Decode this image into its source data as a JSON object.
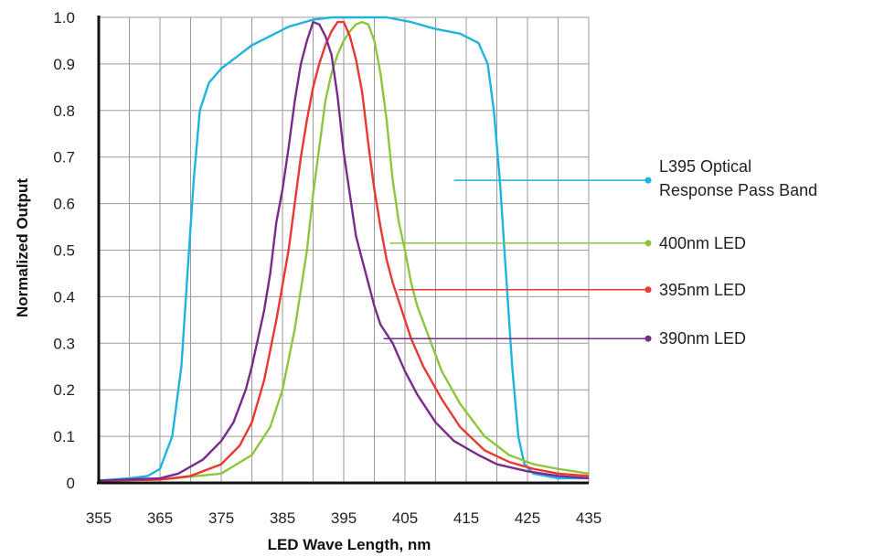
{
  "chart_data": {
    "type": "line",
    "title": "",
    "xlabel": "LED Wave Length, nm",
    "ylabel": "Normalized Output",
    "xlim": [
      355,
      435
    ],
    "ylim": [
      0,
      1.0
    ],
    "x_ticks": [
      355,
      360,
      365,
      370,
      375,
      380,
      385,
      390,
      395,
      400,
      405,
      410,
      415,
      420,
      425,
      430,
      435
    ],
    "x_tick_labels": [
      "355",
      "365",
      "375",
      "385",
      "395",
      "405",
      "415",
      "425",
      "435"
    ],
    "y_ticks": [
      0,
      0.1,
      0.2,
      0.3,
      0.4,
      0.5,
      0.6,
      0.7,
      0.8,
      0.9,
      1.0
    ],
    "y_tick_labels": [
      "0",
      "0.1",
      "0.2",
      "0.3",
      "0.4",
      "0.5",
      "0.6",
      "0.7",
      "0.8",
      "0.9",
      "1.0"
    ],
    "grid": true,
    "legend_position": "right",
    "series": [
      {
        "name": "L395 Optical Response Pass Band",
        "legend_lines": [
          "L395 Optical",
          "Response Pass Band"
        ],
        "color": "#1fb3e0",
        "points": [
          [
            355,
            0.005
          ],
          [
            360,
            0.01
          ],
          [
            363,
            0.015
          ],
          [
            365,
            0.03
          ],
          [
            367,
            0.1
          ],
          [
            368.5,
            0.25
          ],
          [
            369.5,
            0.45
          ],
          [
            370.5,
            0.65
          ],
          [
            371.5,
            0.8
          ],
          [
            373,
            0.86
          ],
          [
            375,
            0.89
          ],
          [
            378,
            0.92
          ],
          [
            380,
            0.94
          ],
          [
            383,
            0.96
          ],
          [
            386,
            0.98
          ],
          [
            390,
            0.995
          ],
          [
            393,
            1.0
          ],
          [
            397,
            1.0
          ],
          [
            402,
            1.0
          ],
          [
            406,
            0.99
          ],
          [
            410,
            0.975
          ],
          [
            414,
            0.965
          ],
          [
            417,
            0.945
          ],
          [
            418.5,
            0.9
          ],
          [
            419.5,
            0.8
          ],
          [
            420.5,
            0.65
          ],
          [
            421.5,
            0.45
          ],
          [
            422.5,
            0.25
          ],
          [
            423.5,
            0.1
          ],
          [
            424.5,
            0.04
          ],
          [
            426,
            0.02
          ],
          [
            430,
            0.01
          ],
          [
            435,
            0.01
          ]
        ],
        "legend_anchor": [
          413,
          0.65
        ]
      },
      {
        "name": "400nm LED",
        "legend_lines": [
          "400nm LED"
        ],
        "color": "#8cc63f",
        "points": [
          [
            355,
            0.005
          ],
          [
            365,
            0.007
          ],
          [
            375,
            0.02
          ],
          [
            380,
            0.06
          ],
          [
            383,
            0.12
          ],
          [
            385,
            0.2
          ],
          [
            387,
            0.33
          ],
          [
            389,
            0.5
          ],
          [
            390,
            0.62
          ],
          [
            391,
            0.72
          ],
          [
            392,
            0.82
          ],
          [
            393,
            0.88
          ],
          [
            394,
            0.92
          ],
          [
            395,
            0.95
          ],
          [
            396,
            0.97
          ],
          [
            397,
            0.985
          ],
          [
            398,
            0.99
          ],
          [
            399,
            0.985
          ],
          [
            400,
            0.95
          ],
          [
            401,
            0.88
          ],
          [
            402,
            0.78
          ],
          [
            403,
            0.65
          ],
          [
            404,
            0.56
          ],
          [
            405,
            0.5
          ],
          [
            406,
            0.43
          ],
          [
            407,
            0.38
          ],
          [
            409,
            0.31
          ],
          [
            411,
            0.24
          ],
          [
            414,
            0.17
          ],
          [
            418,
            0.1
          ],
          [
            422,
            0.06
          ],
          [
            426,
            0.04
          ],
          [
            430,
            0.03
          ],
          [
            435,
            0.02
          ]
        ],
        "legend_anchor": [
          402.5,
          0.515
        ]
      },
      {
        "name": "395nm LED",
        "legend_lines": [
          "395nm LED"
        ],
        "color": "#e8382f",
        "points": [
          [
            355,
            0.005
          ],
          [
            365,
            0.007
          ],
          [
            370,
            0.015
          ],
          [
            375,
            0.04
          ],
          [
            378,
            0.08
          ],
          [
            380,
            0.13
          ],
          [
            382,
            0.22
          ],
          [
            384,
            0.35
          ],
          [
            386,
            0.5
          ],
          [
            387,
            0.6
          ],
          [
            388,
            0.7
          ],
          [
            389,
            0.78
          ],
          [
            390,
            0.85
          ],
          [
            391,
            0.9
          ],
          [
            392,
            0.94
          ],
          [
            393,
            0.97
          ],
          [
            394,
            0.99
          ],
          [
            395,
            0.99
          ],
          [
            396,
            0.96
          ],
          [
            397,
            0.91
          ],
          [
            398,
            0.84
          ],
          [
            399,
            0.73
          ],
          [
            400,
            0.63
          ],
          [
            401,
            0.55
          ],
          [
            402,
            0.48
          ],
          [
            403,
            0.43
          ],
          [
            404,
            0.39
          ],
          [
            406,
            0.31
          ],
          [
            408,
            0.25
          ],
          [
            411,
            0.18
          ],
          [
            414,
            0.12
          ],
          [
            418,
            0.07
          ],
          [
            422,
            0.045
          ],
          [
            426,
            0.03
          ],
          [
            430,
            0.02
          ],
          [
            435,
            0.015
          ]
        ],
        "legend_anchor": [
          404,
          0.415
        ]
      },
      {
        "name": "390nm LED",
        "legend_lines": [
          "390nm LED"
        ],
        "color": "#7a2a8c",
        "points": [
          [
            355,
            0.005
          ],
          [
            365,
            0.01
          ],
          [
            368,
            0.02
          ],
          [
            372,
            0.05
          ],
          [
            375,
            0.09
          ],
          [
            377,
            0.13
          ],
          [
            379,
            0.2
          ],
          [
            380,
            0.25
          ],
          [
            382,
            0.37
          ],
          [
            383,
            0.45
          ],
          [
            384,
            0.56
          ],
          [
            385,
            0.63
          ],
          [
            386,
            0.72
          ],
          [
            387,
            0.82
          ],
          [
            388,
            0.9
          ],
          [
            389,
            0.95
          ],
          [
            390,
            0.99
          ],
          [
            391,
            0.985
          ],
          [
            392,
            0.96
          ],
          [
            393,
            0.92
          ],
          [
            394,
            0.83
          ],
          [
            395,
            0.71
          ],
          [
            396,
            0.62
          ],
          [
            397,
            0.53
          ],
          [
            398,
            0.48
          ],
          [
            399,
            0.43
          ],
          [
            400,
            0.38
          ],
          [
            401,
            0.34
          ],
          [
            403,
            0.3
          ],
          [
            405,
            0.24
          ],
          [
            407,
            0.19
          ],
          [
            410,
            0.13
          ],
          [
            413,
            0.09
          ],
          [
            417,
            0.06
          ],
          [
            420,
            0.04
          ],
          [
            425,
            0.025
          ],
          [
            430,
            0.015
          ],
          [
            435,
            0.01
          ]
        ],
        "legend_anchor": [
          401.5,
          0.31
        ]
      }
    ]
  }
}
